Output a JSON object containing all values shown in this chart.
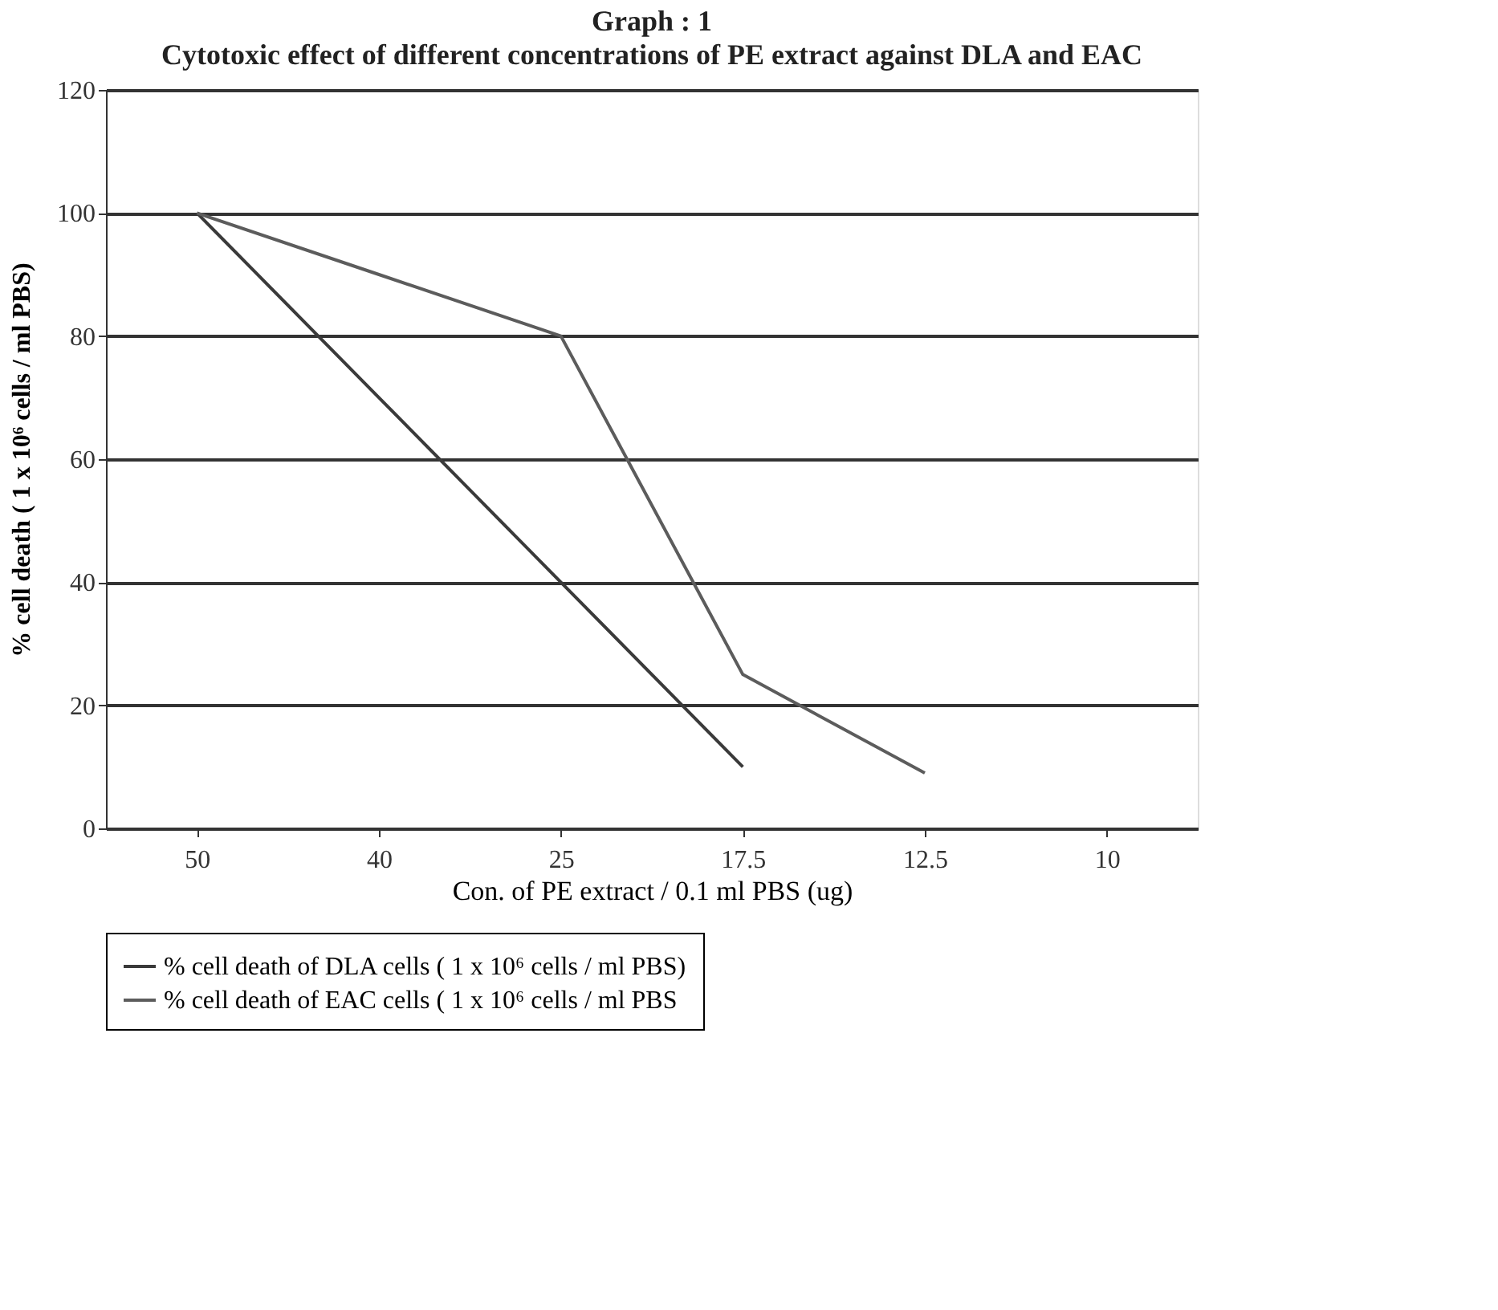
{
  "chart_data": {
    "type": "line",
    "title": "Graph : 1",
    "subtitle": "Cytotoxic effect of different concentrations of PE extract against DLA and EAC",
    "xlabel": "Con. of PE extract / 0.1 ml PBS (ug)",
    "ylabel": "% cell death ( 1 x 10⁶ cells / ml PBS)",
    "categories": [
      "50",
      "40",
      "25",
      "17.5",
      "12.5",
      "10"
    ],
    "series": [
      {
        "name": "% cell death of DLA cells ( 1 x 10⁶ cells / ml PBS)",
        "color": "#3a3a3a",
        "values": [
          100,
          70,
          40,
          10,
          null,
          null
        ]
      },
      {
        "name": "% cell death of EAC cells ( 1 x 10⁶ cells / ml PBS",
        "color": "#5c5c5c",
        "values": [
          100,
          90,
          80,
          25,
          9,
          null
        ]
      }
    ],
    "ylim": [
      0,
      120
    ],
    "yticks": [
      0,
      20,
      40,
      60,
      80,
      100,
      120
    ],
    "grid": "y",
    "legend": "bottom",
    "marker": "none",
    "line_style": "solid"
  }
}
